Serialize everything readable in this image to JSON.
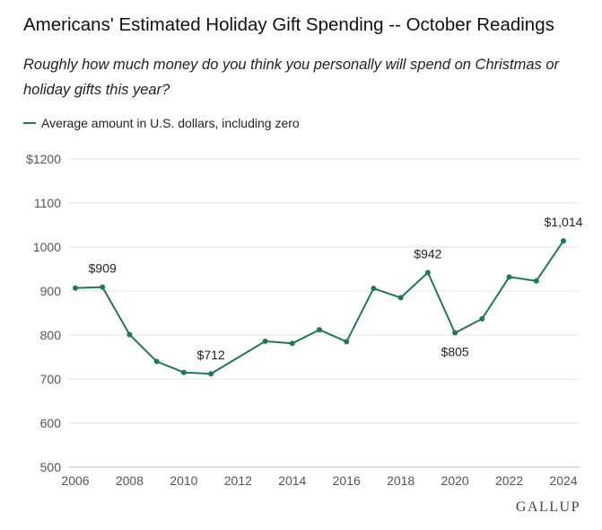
{
  "chart_data": {
    "type": "line",
    "title": "Americans' Estimated Holiday Gift Spending -- October Readings",
    "subtitle": "Roughly how much money do you think you personally will spend on Christmas or holiday gifts this year?",
    "legend": "Average amount in U.S. dollars, including zero",
    "color": "#1f7a4d",
    "x": [
      2006,
      2007,
      2008,
      2009,
      2010,
      2011,
      2013,
      2014,
      2015,
      2016,
      2017,
      2018,
      2019,
      2020,
      2021,
      2022,
      2023,
      2024
    ],
    "series": [
      {
        "name": "Average amount in U.S. dollars, including zero",
        "values": [
          907,
          909,
          801,
          740,
          715,
          712,
          786,
          781,
          812,
          785,
          906,
          885,
          942,
          805,
          837,
          932,
          923,
          1014
        ]
      }
    ],
    "xlim": [
      2006,
      2024
    ],
    "ylim": [
      500,
      1200
    ],
    "x_ticks": [
      2006,
      2008,
      2010,
      2012,
      2014,
      2016,
      2018,
      2020,
      2022,
      2024
    ],
    "y_ticks": [
      500,
      600,
      700,
      800,
      900,
      1000,
      1100,
      1200
    ],
    "y_tick_labels": [
      "500",
      "600",
      "700",
      "800",
      "900",
      "1000",
      "1100",
      "$1200"
    ],
    "annotations": [
      {
        "x": 2007,
        "value": 909,
        "text": "$909",
        "placement": "above"
      },
      {
        "x": 2011,
        "value": 712,
        "text": "$712",
        "placement": "above"
      },
      {
        "x": 2019,
        "value": 942,
        "text": "$942",
        "placement": "above"
      },
      {
        "x": 2020,
        "value": 805,
        "text": "$805",
        "placement": "below"
      },
      {
        "x": 2024,
        "value": 1014,
        "text": "$1,014",
        "placement": "above"
      }
    ],
    "grid": true
  },
  "source": "GALLUP"
}
